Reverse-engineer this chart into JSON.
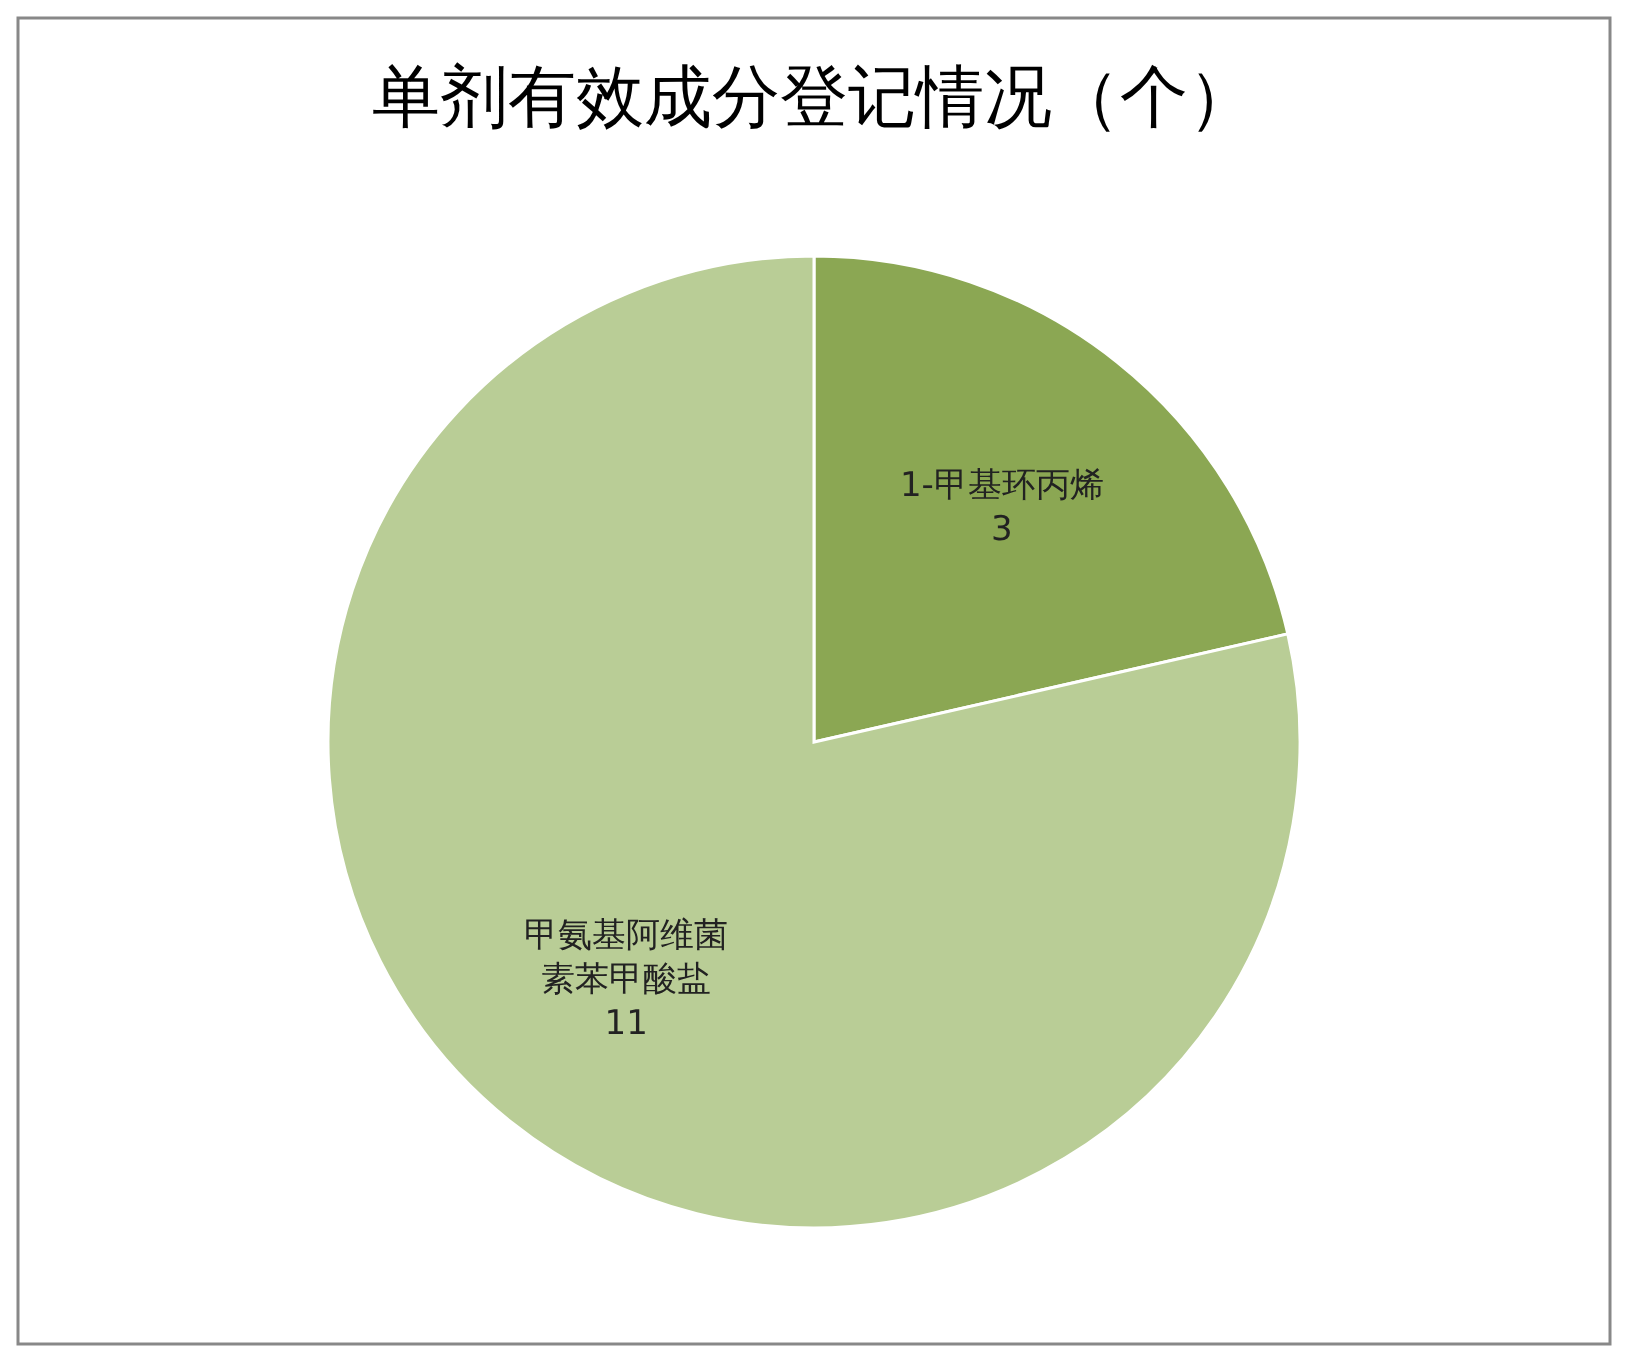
{
  "chart_data": {
    "type": "pie",
    "title": "单剂有效成分登记情况（个）",
    "categories": [
      "1-甲基环丙烯",
      "甲氨基阿维菌素苯甲酸盐"
    ],
    "values": [
      3,
      11
    ],
    "colors": [
      "#8ba753",
      "#b9cd96"
    ],
    "data_labels": true,
    "legend": false
  }
}
